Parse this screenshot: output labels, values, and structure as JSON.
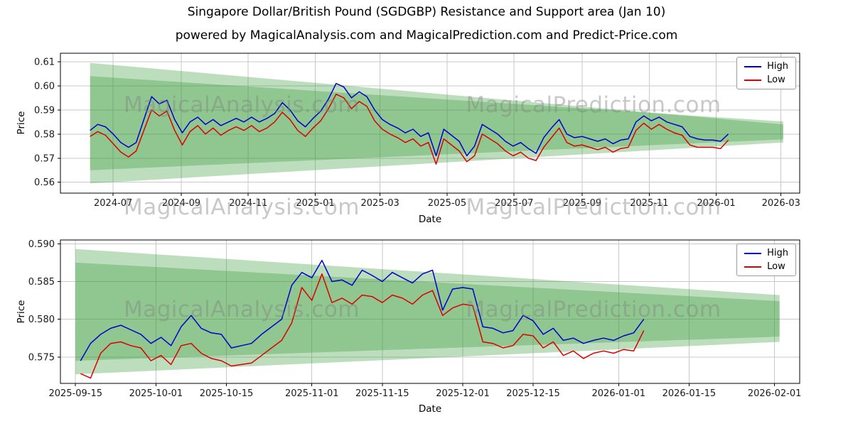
{
  "figure": {
    "title": "Singapore Dollar/British Pound (SGDGBP) Resistance and Support area (Jan 10)",
    "subtitle": "powered by MagicalAnalysis.com and MagicalPrediction.com and Predict-Price.com"
  },
  "legend": {
    "high_label": "High",
    "low_label": "Low"
  },
  "watermarks": [
    "MagicalAnalysis.com",
    "MagicalPrediction.com"
  ],
  "colors": {
    "high": "#0000cc",
    "low": "#dd0000",
    "band": "#339933",
    "grid": "#c8c8c8",
    "spine": "#000000",
    "watermark": "#808080"
  },
  "chart_data": [
    {
      "type": "line",
      "title": "",
      "xlabel": "Date",
      "ylabel": "Price",
      "x_unit": "days since 2024-06-01",
      "xlim": [
        -18,
        655
      ],
      "ylim": [
        0.5555,
        0.6135
      ],
      "grid": true,
      "legend_position": "upper right",
      "x_ticks": [
        {
          "pos": 30,
          "label": "2024-07"
        },
        {
          "pos": 92,
          "label": "2024-09"
        },
        {
          "pos": 153,
          "label": "2024-11"
        },
        {
          "pos": 214,
          "label": "2025-01"
        },
        {
          "pos": 273,
          "label": "2025-03"
        },
        {
          "pos": 334,
          "label": "2025-05"
        },
        {
          "pos": 395,
          "label": "2025-07"
        },
        {
          "pos": 457,
          "label": "2025-09"
        },
        {
          "pos": 518,
          "label": "2025-11"
        },
        {
          "pos": 579,
          "label": "2026-01"
        },
        {
          "pos": 638,
          "label": "2026-03"
        }
      ],
      "y_ticks": [
        {
          "pos": 0.56,
          "label": "0.56"
        },
        {
          "pos": 0.57,
          "label": "0.57"
        },
        {
          "pos": 0.58,
          "label": "0.58"
        },
        {
          "pos": 0.59,
          "label": "0.59"
        },
        {
          "pos": 0.6,
          "label": "0.60"
        },
        {
          "pos": 0.61,
          "label": "0.61"
        }
      ],
      "x": [
        9,
        16,
        23,
        30,
        37,
        44,
        51,
        58,
        65,
        72,
        79,
        86,
        93,
        100,
        107,
        114,
        121,
        128,
        135,
        142,
        149,
        156,
        163,
        170,
        177,
        184,
        191,
        198,
        205,
        212,
        219,
        226,
        233,
        240,
        247,
        254,
        261,
        268,
        275,
        282,
        289,
        296,
        303,
        310,
        317,
        324,
        331,
        338,
        345,
        352,
        359,
        366,
        373,
        380,
        387,
        394,
        401,
        408,
        415,
        422,
        429,
        436,
        443,
        450,
        457,
        464,
        471,
        478,
        485,
        492,
        499,
        506,
        513,
        520,
        527,
        534,
        541,
        548,
        555,
        562,
        569,
        576,
        583,
        590
      ],
      "series": [
        {
          "name": "High",
          "color_key": "high",
          "values": [
            0.5815,
            0.584,
            0.583,
            0.58,
            0.5765,
            0.5745,
            0.5765,
            0.586,
            0.5955,
            0.5925,
            0.594,
            0.586,
            0.5805,
            0.585,
            0.587,
            0.584,
            0.586,
            0.5835,
            0.585,
            0.5865,
            0.585,
            0.587,
            0.585,
            0.5865,
            0.5885,
            0.593,
            0.59,
            0.5855,
            0.583,
            0.5865,
            0.5895,
            0.5945,
            0.601,
            0.5995,
            0.595,
            0.5975,
            0.5955,
            0.59,
            0.586,
            0.584,
            0.5825,
            0.5805,
            0.582,
            0.579,
            0.5805,
            0.571,
            0.582,
            0.5795,
            0.577,
            0.571,
            0.575,
            0.584,
            0.582,
            0.58,
            0.577,
            0.575,
            0.5765,
            0.574,
            0.572,
            0.5785,
            0.5825,
            0.586,
            0.58,
            0.5785,
            0.579,
            0.578,
            0.577,
            0.578,
            0.576,
            0.5775,
            0.578,
            0.585,
            0.5875,
            0.5855,
            0.587,
            0.585,
            0.584,
            0.583,
            0.579,
            0.578,
            0.5775,
            0.5775,
            0.577,
            0.58
          ]
        },
        {
          "name": "Low",
          "color_key": "low",
          "values": [
            0.579,
            0.581,
            0.5795,
            0.576,
            0.5725,
            0.5705,
            0.573,
            0.5815,
            0.59,
            0.5875,
            0.5895,
            0.5815,
            0.5755,
            0.581,
            0.5835,
            0.58,
            0.5825,
            0.5795,
            0.5815,
            0.583,
            0.5815,
            0.5835,
            0.581,
            0.5825,
            0.585,
            0.589,
            0.586,
            0.5815,
            0.579,
            0.5825,
            0.5855,
            0.5905,
            0.5965,
            0.595,
            0.5905,
            0.5935,
            0.5915,
            0.5855,
            0.582,
            0.58,
            0.5785,
            0.5765,
            0.578,
            0.575,
            0.5765,
            0.5675,
            0.578,
            0.5755,
            0.573,
            0.5685,
            0.571,
            0.58,
            0.578,
            0.576,
            0.573,
            0.571,
            0.5725,
            0.57,
            0.569,
            0.5745,
            0.5785,
            0.5825,
            0.5765,
            0.575,
            0.5755,
            0.5745,
            0.5735,
            0.5745,
            0.5725,
            0.574,
            0.5745,
            0.5815,
            0.5845,
            0.582,
            0.584,
            0.582,
            0.5805,
            0.5795,
            0.5755,
            0.5745,
            0.5745,
            0.5745,
            0.574,
            0.5775
          ]
        }
      ],
      "bands": [
        {
          "name": "resistance-support-outer",
          "x": [
            9,
            640
          ],
          "upper": [
            0.6095,
            0.584
          ],
          "lower": [
            0.5595,
            0.5765
          ]
        },
        {
          "name": "resistance-support-inner",
          "x": [
            9,
            640
          ],
          "upper": [
            0.604,
            0.5852
          ],
          "lower": [
            0.565,
            0.5778
          ]
        }
      ]
    },
    {
      "type": "line",
      "title": "",
      "xlabel": "Date",
      "ylabel": "Price",
      "x_unit": "days since 2025-09-15",
      "xlim": [
        -3,
        144
      ],
      "ylim": [
        0.5715,
        0.5905
      ],
      "grid": true,
      "legend_position": "upper right",
      "x_ticks": [
        {
          "pos": 0,
          "label": "2025-09-15"
        },
        {
          "pos": 16,
          "label": "2025-10-01"
        },
        {
          "pos": 30,
          "label": "2025-10-15"
        },
        {
          "pos": 47,
          "label": "2025-11-01"
        },
        {
          "pos": 61,
          "label": "2025-11-15"
        },
        {
          "pos": 77,
          "label": "2025-12-01"
        },
        {
          "pos": 91,
          "label": "2025-12-15"
        },
        {
          "pos": 108,
          "label": "2026-01-01"
        },
        {
          "pos": 122,
          "label": "2026-01-15"
        },
        {
          "pos": 139,
          "label": "2026-02-01"
        }
      ],
      "y_ticks": [
        {
          "pos": 0.575,
          "label": "0.575"
        },
        {
          "pos": 0.58,
          "label": "0.580"
        },
        {
          "pos": 0.585,
          "label": "0.585"
        },
        {
          "pos": 0.59,
          "label": "0.590"
        }
      ],
      "x": [
        1,
        3,
        5,
        7,
        9,
        11,
        13,
        15,
        17,
        19,
        21,
        23,
        25,
        27,
        29,
        31,
        33,
        35,
        37,
        39,
        41,
        43,
        45,
        47,
        49,
        51,
        53,
        55,
        57,
        59,
        61,
        63,
        65,
        67,
        69,
        71,
        73,
        75,
        77,
        79,
        81,
        83,
        85,
        87,
        89,
        91,
        93,
        95,
        97,
        99,
        101,
        103,
        105,
        107,
        109,
        111,
        113
      ],
      "series": [
        {
          "name": "High",
          "color_key": "high",
          "values": [
            0.5745,
            0.5768,
            0.578,
            0.5788,
            0.5792,
            0.5786,
            0.578,
            0.5768,
            0.5776,
            0.5765,
            0.579,
            0.5805,
            0.5788,
            0.5782,
            0.578,
            0.5762,
            0.5765,
            0.5768,
            0.578,
            0.579,
            0.58,
            0.5845,
            0.5862,
            0.5855,
            0.5878,
            0.585,
            0.5852,
            0.5845,
            0.5865,
            0.5858,
            0.585,
            0.5862,
            0.5855,
            0.5848,
            0.586,
            0.5865,
            0.5812,
            0.584,
            0.5842,
            0.584,
            0.579,
            0.5788,
            0.5782,
            0.5785,
            0.5805,
            0.5798,
            0.578,
            0.5788,
            0.5772,
            0.5775,
            0.5768,
            0.5772,
            0.5775,
            0.5772,
            0.5778,
            0.5782,
            0.58
          ]
        },
        {
          "name": "Low",
          "color_key": "low",
          "values": [
            0.5728,
            0.5722,
            0.5755,
            0.5768,
            0.577,
            0.5765,
            0.5762,
            0.5745,
            0.5752,
            0.574,
            0.5765,
            0.5768,
            0.5755,
            0.5748,
            0.5745,
            0.5738,
            0.574,
            0.5742,
            0.5752,
            0.5762,
            0.5772,
            0.5795,
            0.5842,
            0.5825,
            0.586,
            0.5822,
            0.5828,
            0.582,
            0.5832,
            0.583,
            0.5822,
            0.5832,
            0.5828,
            0.582,
            0.5832,
            0.5838,
            0.5805,
            0.5815,
            0.582,
            0.5818,
            0.577,
            0.5768,
            0.5762,
            0.5765,
            0.578,
            0.5778,
            0.5762,
            0.577,
            0.5752,
            0.5758,
            0.5748,
            0.5755,
            0.5758,
            0.5755,
            0.576,
            0.5758,
            0.5785
          ]
        }
      ],
      "bands": [
        {
          "name": "resistance-support-outer",
          "x": [
            0,
            140
          ],
          "upper": [
            0.5893,
            0.5832
          ],
          "lower": [
            0.5727,
            0.577
          ]
        },
        {
          "name": "resistance-support-inner",
          "x": [
            0,
            140
          ],
          "upper": [
            0.5875,
            0.5824
          ],
          "lower": [
            0.5745,
            0.5777
          ]
        }
      ]
    }
  ]
}
